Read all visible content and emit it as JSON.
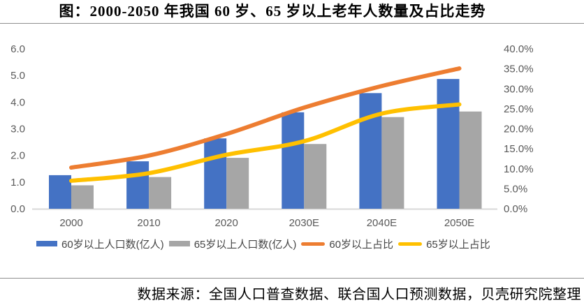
{
  "title": "图：2000-2050 年我国 60 岁、65 岁以上老年人数量及占比走势",
  "source": "数据来源：全国人口普查数据、联合国人口预测数据，贝壳研究院整理",
  "colors": {
    "bar_60": "#4472C4",
    "bar_65": "#A6A6A6",
    "line_60": "#ED7D31",
    "line_65": "#FFC000",
    "axis_line": "#D9D9D9",
    "tick_text": "#595959",
    "divider": "#8f8f8f"
  },
  "chart_data": {
    "type": "bar",
    "subtype": "combo-bar-line-dual-axis",
    "title": "图：2000-2050 年我国 60 岁、65 岁以上老年人数量及占比走势",
    "categories": [
      "2000",
      "2010",
      "2020",
      "2030E",
      "2040E",
      "2050E"
    ],
    "series": [
      {
        "name": "60岁以上人口数(亿人)",
        "type": "bar",
        "axis": "left",
        "color": "#4472C4",
        "values": [
          1.26,
          1.78,
          2.64,
          3.62,
          4.34,
          4.87
        ]
      },
      {
        "name": "65岁以上人口数(亿人)",
        "type": "bar",
        "axis": "left",
        "color": "#A6A6A6",
        "values": [
          0.88,
          1.19,
          1.91,
          2.43,
          3.44,
          3.65
        ]
      },
      {
        "name": "60岁以上占比",
        "type": "line",
        "axis": "right",
        "color": "#ED7D31",
        "values": [
          10.3,
          13.3,
          18.7,
          25.3,
          30.7,
          35.1
        ]
      },
      {
        "name": "65岁以上占比",
        "type": "line",
        "axis": "right",
        "color": "#FFC000",
        "values": [
          7.0,
          8.9,
          13.5,
          16.9,
          23.8,
          26.1
        ]
      }
    ],
    "left_axis": {
      "min": 0,
      "max": 6,
      "step": 1,
      "labels": [
        "0.0",
        "1.0",
        "2.0",
        "3.0",
        "4.0",
        "5.0",
        "6.0"
      ]
    },
    "right_axis": {
      "min": 0,
      "max": 40,
      "step": 5,
      "labels": [
        "0.0%",
        "5.0%",
        "10.0%",
        "15.0%",
        "20.0%",
        "25.0%",
        "30.0%",
        "35.0%",
        "40.0%"
      ]
    },
    "grid": false,
    "legend_position": "bottom",
    "legend_entries": [
      "60岁以上人口数(亿人)",
      "65岁以上人口数(亿人)",
      "60岁以上占比",
      "65岁以上占比"
    ]
  }
}
